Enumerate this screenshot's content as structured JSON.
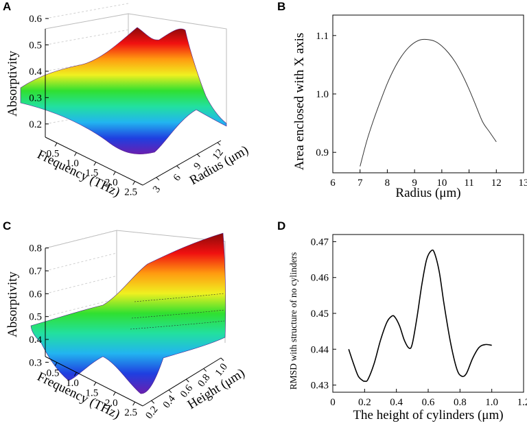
{
  "panels": {
    "A": "A",
    "B": "B",
    "C": "C",
    "D": "D"
  },
  "chart_data": [
    {
      "id": "A",
      "type": "surface3d",
      "zlabel": "Absorptivity",
      "xlabel": "Frequency (THz)",
      "ylabel": "Radius (μm)",
      "zticks": [
        "0.2",
        "0.3",
        "0.4",
        "0.5",
        "0.6"
      ],
      "xticks": [
        "0.5",
        "1.0",
        "1.5",
        "2.0",
        "2.5"
      ],
      "yticks": [
        "3",
        "6",
        "9",
        "12"
      ],
      "zlim": [
        0.15,
        0.6
      ],
      "xlim": [
        0.2,
        2.7
      ],
      "ylim": [
        1,
        12.5
      ],
      "colormap": [
        "#6a1fb0",
        "#1f3fe0",
        "#22b4f0",
        "#22e0a0",
        "#30e030",
        "#f0f020",
        "#ff9a10",
        "#f01010",
        "#8a0a0a"
      ]
    },
    {
      "id": "B",
      "type": "line",
      "xlabel": "Radius (μm)",
      "ylabel": "Area enclosed with X axis",
      "xlim": [
        6,
        13
      ],
      "ylim": [
        0.865,
        1.135
      ],
      "xticks": [
        "6",
        "7",
        "8",
        "9",
        "10",
        "11",
        "12",
        "13"
      ],
      "yticks": [
        "0.9",
        "1.0",
        "1.1"
      ],
      "series": [
        {
          "name": "area",
          "x": [
            7.0,
            7.25,
            7.5,
            7.75,
            8.0,
            8.25,
            8.5,
            8.75,
            9.0,
            9.25,
            9.5,
            9.75,
            10.0,
            10.25,
            10.5,
            10.75,
            11.0,
            11.25,
            11.5,
            11.75,
            12.0
          ],
          "y": [
            0.876,
            0.92,
            0.956,
            0.988,
            1.018,
            1.043,
            1.063,
            1.078,
            1.088,
            1.093,
            1.093,
            1.09,
            1.082,
            1.07,
            1.054,
            1.033,
            1.008,
            0.98,
            0.952,
            0.935,
            0.918
          ]
        }
      ]
    },
    {
      "id": "C",
      "type": "surface3d",
      "zlabel": "Absorptivity",
      "xlabel": "Frequency (THz)",
      "ylabel": "Height (μm)",
      "zticks": [
        "0.3",
        "0.4",
        "0.5",
        "0.6",
        "0.7",
        "0.8"
      ],
      "xticks": [
        "0.5",
        "1.0",
        "1.5",
        "2.0",
        "2.5"
      ],
      "yticks": [
        "0.2",
        "0.4",
        "0.6",
        "0.8",
        "1.0"
      ],
      "zlim": [
        0.25,
        0.85
      ],
      "xlim": [
        0.2,
        2.7
      ],
      "ylim": [
        0.1,
        1.0
      ],
      "colormap": [
        "#6a1fb0",
        "#1f3fe0",
        "#22b4f0",
        "#22e0a0",
        "#30e030",
        "#f0f020",
        "#ff9a10",
        "#f01010",
        "#8a0a0a"
      ]
    },
    {
      "id": "D",
      "type": "line",
      "xlabel": "The height of cylinders (μm)",
      "ylabel": "RMSD with structure of no cylinders",
      "xlim": [
        0,
        1.2
      ],
      "ylim": [
        0.428,
        0.472
      ],
      "xticks": [
        "0",
        "0.2",
        "0.4",
        "0.6",
        "0.8",
        "1.0",
        "1.2"
      ],
      "yticks": [
        "0.43",
        "0.44",
        "0.45",
        "0.46",
        "0.47"
      ],
      "series": [
        {
          "name": "rmsd",
          "x": [
            0.1,
            0.13,
            0.16,
            0.19,
            0.2,
            0.22,
            0.26,
            0.3,
            0.34,
            0.37,
            0.39,
            0.42,
            0.45,
            0.48,
            0.5,
            0.53,
            0.56,
            0.59,
            0.62,
            0.64,
            0.67,
            0.7,
            0.74,
            0.78,
            0.81,
            0.84,
            0.88,
            0.92,
            0.96,
            1.0
          ],
          "y": [
            0.44,
            0.436,
            0.4325,
            0.4312,
            0.4311,
            0.4315,
            0.436,
            0.4425,
            0.4475,
            0.4492,
            0.449,
            0.4465,
            0.4425,
            0.4403,
            0.4415,
            0.449,
            0.458,
            0.465,
            0.4675,
            0.4668,
            0.4615,
            0.4525,
            0.442,
            0.4345,
            0.4325,
            0.4332,
            0.4375,
            0.4405,
            0.4413,
            0.4411
          ]
        }
      ]
    }
  ]
}
